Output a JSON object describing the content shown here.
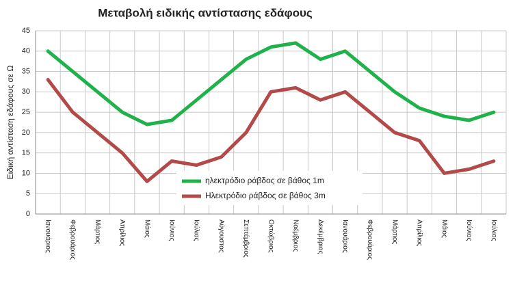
{
  "chart_data": {
    "type": "line",
    "title": "Μεταβολή ειδικής αντίστασης εδάφους",
    "y_label": "Ειδική αντίσταση εδάφους σε Ω",
    "categories": [
      "Ιανουάριος",
      "Φεβρουάριος",
      "Μάρτιος",
      "Απρίλιος",
      "Μάιος",
      "Ιούνιος",
      "Ιούλιος",
      "Αύγουστος",
      "Σεπτέμβριος",
      "Οκτώβριος",
      "Νοέμβριος",
      "Δεκέμβριος",
      "Ιανουάριος",
      "Φεβρουάριος",
      "Μάρτιος",
      "Απρίλιος",
      "Μάιος",
      "Ιούνιος",
      "Ιούλιος"
    ],
    "series": [
      {
        "name": "ηλεκτρόδιο ράβδος σε βάθος 1m",
        "color": "#1fb24a",
        "values": [
          40,
          35,
          30,
          25,
          22,
          23,
          28,
          33,
          38,
          41,
          42,
          38,
          40,
          35,
          30,
          26,
          24,
          23,
          25
        ]
      },
      {
        "name": "Ηλεκτρόδιο ράβδος σε βάθος 3m",
        "color": "#b34a4a",
        "values": [
          33,
          25,
          20,
          15,
          8,
          13,
          12,
          14,
          20,
          30,
          31,
          28,
          30,
          25,
          20,
          18,
          10,
          11,
          13
        ]
      }
    ],
    "ylim": [
      0,
      45
    ],
    "yticks": [
      0,
      5,
      10,
      15,
      20,
      25,
      30,
      35,
      40,
      45
    ],
    "grid": true
  }
}
